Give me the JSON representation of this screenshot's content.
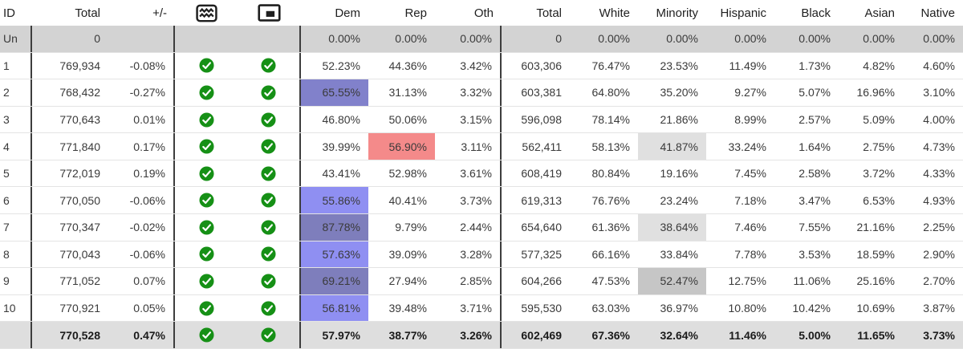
{
  "header": {
    "id": "ID",
    "total": "Total",
    "dev": "+/-",
    "dem": "Dem",
    "rep": "Rep",
    "oth": "Oth",
    "pop": "Total",
    "white": "White",
    "minority": "Minority",
    "hispanic": "Hispanic",
    "black": "Black",
    "asian": "Asian",
    "native": "Native",
    "contiguity_icon": "waves-icon",
    "compactness_icon": "inset-square-icon"
  },
  "palette": {
    "dem_light": "#8f8ff2",
    "dem_medium": "#8181cb",
    "dem_dark": "#7e7ebc",
    "rep_light": "#f48a8a",
    "minority_light": "#e0e0e0",
    "minority_dark": "#c6c6c6",
    "check_green": "#169016",
    "icon_ink": "#1f1f1f"
  },
  "rows": [
    {
      "type": "unassigned",
      "id": "Un",
      "total": "0",
      "dev": "",
      "checks": false,
      "dem": "0.00%",
      "rep": "0.00%",
      "oth": "0.00%",
      "pop": "0",
      "white": "0.00%",
      "minority": "0.00%",
      "hispanic": "0.00%",
      "black": "0.00%",
      "asian": "0.00%",
      "native": "0.00%",
      "highlights": {}
    },
    {
      "type": "district",
      "id": "1",
      "total": "769,934",
      "dev": "-0.08%",
      "checks": true,
      "dem": "52.23%",
      "rep": "44.36%",
      "oth": "3.42%",
      "pop": "603,306",
      "white": "76.47%",
      "minority": "23.53%",
      "hispanic": "11.49%",
      "black": "1.73%",
      "asian": "4.82%",
      "native": "4.60%",
      "highlights": {}
    },
    {
      "type": "district",
      "id": "2",
      "total": "768,432",
      "dev": "-0.27%",
      "checks": true,
      "dem": "65.55%",
      "rep": "31.13%",
      "oth": "3.32%",
      "pop": "603,381",
      "white": "64.80%",
      "minority": "35.20%",
      "hispanic": "9.27%",
      "black": "5.07%",
      "asian": "16.96%",
      "native": "3.10%",
      "highlights": {
        "dem": "dem_medium"
      }
    },
    {
      "type": "district",
      "id": "3",
      "total": "770,643",
      "dev": "0.01%",
      "checks": true,
      "dem": "46.80%",
      "rep": "50.06%",
      "oth": "3.15%",
      "pop": "596,098",
      "white": "78.14%",
      "minority": "21.86%",
      "hispanic": "8.99%",
      "black": "2.57%",
      "asian": "5.09%",
      "native": "4.00%",
      "highlights": {}
    },
    {
      "type": "district",
      "id": "4",
      "total": "771,840",
      "dev": "0.17%",
      "checks": true,
      "dem": "39.99%",
      "rep": "56.90%",
      "oth": "3.11%",
      "pop": "562,411",
      "white": "58.13%",
      "minority": "41.87%",
      "hispanic": "33.24%",
      "black": "1.64%",
      "asian": "2.75%",
      "native": "4.73%",
      "highlights": {
        "rep": "rep_light",
        "minority": "minority_light"
      }
    },
    {
      "type": "district",
      "id": "5",
      "total": "772,019",
      "dev": "0.19%",
      "checks": true,
      "dem": "43.41%",
      "rep": "52.98%",
      "oth": "3.61%",
      "pop": "608,419",
      "white": "80.84%",
      "minority": "19.16%",
      "hispanic": "7.45%",
      "black": "2.58%",
      "asian": "3.72%",
      "native": "4.33%",
      "highlights": {}
    },
    {
      "type": "district",
      "id": "6",
      "total": "770,050",
      "dev": "-0.06%",
      "checks": true,
      "dem": "55.86%",
      "rep": "40.41%",
      "oth": "3.73%",
      "pop": "619,313",
      "white": "76.76%",
      "minority": "23.24%",
      "hispanic": "7.18%",
      "black": "3.47%",
      "asian": "6.53%",
      "native": "4.93%",
      "highlights": {
        "dem": "dem_light"
      }
    },
    {
      "type": "district",
      "id": "7",
      "total": "770,347",
      "dev": "-0.02%",
      "checks": true,
      "dem": "87.78%",
      "rep": "9.79%",
      "oth": "2.44%",
      "pop": "654,640",
      "white": "61.36%",
      "minority": "38.64%",
      "hispanic": "7.46%",
      "black": "7.55%",
      "asian": "21.16%",
      "native": "2.25%",
      "highlights": {
        "dem": "dem_dark",
        "minority": "minority_light"
      }
    },
    {
      "type": "district",
      "id": "8",
      "total": "770,043",
      "dev": "-0.06%",
      "checks": true,
      "dem": "57.63%",
      "rep": "39.09%",
      "oth": "3.28%",
      "pop": "577,325",
      "white": "66.16%",
      "minority": "33.84%",
      "hispanic": "7.78%",
      "black": "3.53%",
      "asian": "18.59%",
      "native": "2.90%",
      "highlights": {
        "dem": "dem_light"
      }
    },
    {
      "type": "district",
      "id": "9",
      "total": "771,052",
      "dev": "0.07%",
      "checks": true,
      "dem": "69.21%",
      "rep": "27.94%",
      "oth": "2.85%",
      "pop": "604,266",
      "white": "47.53%",
      "minority": "52.47%",
      "hispanic": "12.75%",
      "black": "11.06%",
      "asian": "25.16%",
      "native": "2.70%",
      "highlights": {
        "dem": "dem_dark",
        "minority": "minority_dark"
      }
    },
    {
      "type": "district",
      "id": "10",
      "total": "770,921",
      "dev": "0.05%",
      "checks": true,
      "dem": "56.81%",
      "rep": "39.48%",
      "oth": "3.71%",
      "pop": "595,530",
      "white": "63.03%",
      "minority": "36.97%",
      "hispanic": "10.80%",
      "black": "10.42%",
      "asian": "10.69%",
      "native": "3.87%",
      "highlights": {
        "dem": "dem_light"
      }
    },
    {
      "type": "totals",
      "id": "",
      "total": "770,528",
      "dev": "0.47%",
      "checks": true,
      "dem": "57.97%",
      "rep": "38.77%",
      "oth": "3.26%",
      "pop": "602,469",
      "white": "67.36%",
      "minority": "32.64%",
      "hispanic": "11.46%",
      "black": "5.00%",
      "asian": "11.65%",
      "native": "3.73%",
      "highlights": {}
    }
  ]
}
